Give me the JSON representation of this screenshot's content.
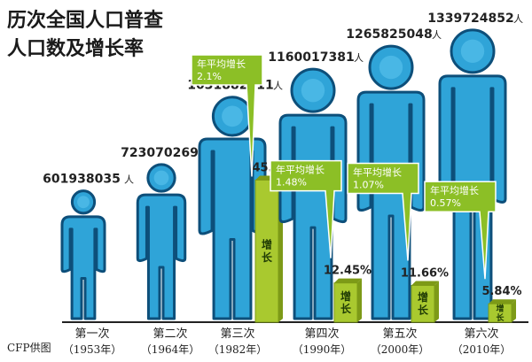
{
  "title_lines": [
    "历次全国人口普查",
    "人口数及增长率"
  ],
  "source": "CFP供图",
  "colors": {
    "figure_fill": "#2fa4d8",
    "figure_stroke": "#0d4f7a",
    "figure_inner": "#5cc4ee",
    "bar": "#a9c92f",
    "bar_dark": "#7d9a17",
    "callout": "#8cbf26",
    "axis": "#222222"
  },
  "chart_data": {
    "type": "bar",
    "title": "历次全国人口普查 人口数及增长率",
    "categories": [
      "第一次",
      "第二次",
      "第三次",
      "第四次",
      "第五次",
      "第六次"
    ],
    "years": [
      "（1953年）",
      "（1964年）",
      "（1982年）",
      "（1990年）",
      "（2000年）",
      "（2010年）"
    ],
    "series": [
      {
        "values": [
          601938035,
          723070269,
          1031882511,
          1160017381,
          1265825048,
          1339724852
        ],
        "labels": [
          "601938035",
          "723070269",
          "1031882511",
          "1160017381",
          "1265825048",
          "1339724852"
        ],
        "unit": "人"
      },
      {
        "values": [
          null,
          null,
          45.1,
          12.45,
          11.66,
          5.84
        ],
        "labels": [
          "",
          "",
          "45.1%",
          "12.45%",
          "11.66%",
          "5.84%"
        ],
        "bar_text": "增长"
      }
    ],
    "annual_growth": {
      "label": "年平均增长",
      "values": [
        null,
        null,
        "2.1%",
        "1.48%",
        "1.07%",
        "0.57%"
      ]
    }
  }
}
